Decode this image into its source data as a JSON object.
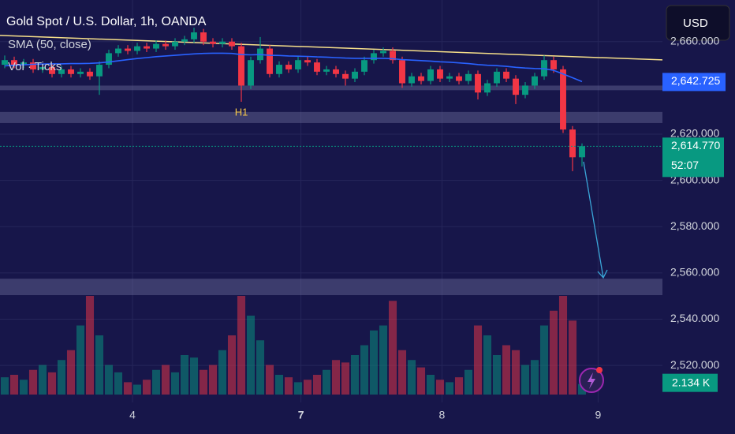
{
  "title": "Gold Spot / U.S. Dollar, 1h, OANDA",
  "indicators": [
    "SMA (50, close)",
    "Vol · Ticks"
  ],
  "currency": "USD",
  "chart_data": {
    "type": "candlestick",
    "ylim": [
      2504,
      2678
    ],
    "yticks": [
      {
        "value": 2660,
        "label": "2,660.000"
      },
      {
        "value": 2620,
        "label": "2,620.000"
      },
      {
        "value": 2600,
        "label": "2,600.000"
      },
      {
        "value": 2580,
        "label": "2,580.000"
      },
      {
        "value": 2560,
        "label": "2,560.000"
      },
      {
        "value": 2540,
        "label": "2,540.000"
      },
      {
        "value": 2520,
        "label": "2,520.000"
      }
    ],
    "xlim": [
      -0.5,
      69.5
    ],
    "xticks": [
      {
        "value": 13.5,
        "label": "4"
      },
      {
        "value": 31.3,
        "label": "7"
      },
      {
        "value": 46.2,
        "label": "8"
      },
      {
        "value": 62.7,
        "label": "9"
      }
    ],
    "up_color": "#089981",
    "down_color": "#f23645",
    "ohlc": [
      [
        2650,
        2654,
        2648.5,
        2652
      ],
      [
        2652,
        2653.5,
        2648.5,
        2650
      ],
      [
        2650,
        2652.5,
        2648.5,
        2651
      ],
      [
        2651,
        2652.5,
        2646.5,
        2648
      ],
      [
        2648,
        2650.5,
        2646.5,
        2649
      ],
      [
        2649,
        2650.5,
        2644.5,
        2646
      ],
      [
        2646,
        2649.5,
        2644.5,
        2648
      ],
      [
        2648,
        2649.5,
        2644.5,
        2646
      ],
      [
        2646,
        2648.5,
        2644.5,
        2647
      ],
      [
        2647,
        2648.5,
        2643.5,
        2645
      ],
      [
        2645,
        2651.5,
        2637,
        2650
      ],
      [
        2650,
        2656.5,
        2648.5,
        2655
      ],
      [
        2655,
        2658.5,
        2653.5,
        2657
      ],
      [
        2657,
        2658.5,
        2654.5,
        2656
      ],
      [
        2656,
        2659.5,
        2654.5,
        2658
      ],
      [
        2658,
        2659.5,
        2655.5,
        2657
      ],
      [
        2657,
        2660.5,
        2655.5,
        2659
      ],
      [
        2659,
        2660.5,
        2656.5,
        2658
      ],
      [
        2658,
        2661.5,
        2656.5,
        2660
      ],
      [
        2660,
        2662.5,
        2658.5,
        2661
      ],
      [
        2661,
        2666,
        2659.5,
        2664
      ],
      [
        2664,
        2665.5,
        2658.5,
        2660
      ],
      [
        2660,
        2661.5,
        2657.5,
        2659
      ],
      [
        2659,
        2661.5,
        2657.5,
        2660
      ],
      [
        2660,
        2661.5,
        2656.5,
        2658
      ],
      [
        2658,
        2659.5,
        2634,
        2641
      ],
      [
        2641,
        2653.5,
        2639.5,
        2652
      ],
      [
        2652,
        2662,
        2650.5,
        2657
      ],
      [
        2657,
        2658.5,
        2644.5,
        2646
      ],
      [
        2646,
        2651.5,
        2644.5,
        2650
      ],
      [
        2650,
        2651.5,
        2646.5,
        2648
      ],
      [
        2648,
        2653.5,
        2646.5,
        2652
      ],
      [
        2652,
        2653.5,
        2649.5,
        2651
      ],
      [
        2651,
        2652.5,
        2645.5,
        2647
      ],
      [
        2647,
        2649.5,
        2645.5,
        2648
      ],
      [
        2648,
        2649.5,
        2644.5,
        2646
      ],
      [
        2646,
        2647.5,
        2641,
        2644
      ],
      [
        2644,
        2648.5,
        2642.5,
        2647
      ],
      [
        2647,
        2653.5,
        2645.5,
        2652
      ],
      [
        2652,
        2656.5,
        2650.5,
        2655
      ],
      [
        2655,
        2657.5,
        2653.5,
        2656
      ],
      [
        2656,
        2657.5,
        2650.5,
        2652
      ],
      [
        2652,
        2653.5,
        2640,
        2642
      ],
      [
        2642,
        2646.5,
        2640.5,
        2645
      ],
      [
        2645,
        2646.5,
        2641.5,
        2643
      ],
      [
        2643,
        2649.5,
        2641.5,
        2648
      ],
      [
        2648,
        2649.5,
        2642.5,
        2644
      ],
      [
        2644,
        2646.5,
        2642.5,
        2645
      ],
      [
        2645,
        2646.5,
        2641.5,
        2643
      ],
      [
        2643,
        2647.5,
        2641.5,
        2646
      ],
      [
        2646,
        2647.5,
        2635,
        2638
      ],
      [
        2638,
        2643.5,
        2636.5,
        2642
      ],
      [
        2642,
        2648.5,
        2640.5,
        2647
      ],
      [
        2647,
        2648.5,
        2642.5,
        2644
      ],
      [
        2644,
        2645.5,
        2633,
        2637
      ],
      [
        2637,
        2642.5,
        2635.5,
        2641
      ],
      [
        2641,
        2646.5,
        2639.5,
        2645
      ],
      [
        2645,
        2654,
        2643.5,
        2652
      ],
      [
        2652,
        2653.5,
        2646.5,
        2648
      ],
      [
        2648,
        2649.5,
        2620.5,
        2622
      ],
      [
        2622,
        2623.5,
        2604,
        2610
      ],
      [
        2610,
        2616,
        2606,
        2614.77
      ]
    ],
    "last_price_label": "2,614.770",
    "countdown": "52:07",
    "sma": {
      "color": "#2962ff",
      "values": [
        2649.5,
        2649.8,
        2650,
        2650.2,
        2650.3,
        2650.4,
        2650.4,
        2650.5,
        2650.5,
        2650.6,
        2650.8,
        2651.2,
        2651.7,
        2652.2,
        2652.7,
        2653.1,
        2653.5,
        2653.8,
        2654.1,
        2654.4,
        2654.7,
        2654.9,
        2655,
        2655,
        2654.9,
        2654.4,
        2654.3,
        2654.4,
        2654.1,
        2654,
        2653.8,
        2653.7,
        2653.6,
        2653.4,
        2653.3,
        2653.1,
        2652.9,
        2652.8,
        2652.8,
        2652.8,
        2652.8,
        2652.6,
        2652.2,
        2652,
        2651.8,
        2651.6,
        2651.3,
        2651.1,
        2650.8,
        2650.5,
        2650.1,
        2649.8,
        2649.6,
        2649.3,
        2648.9,
        2648.6,
        2648.4,
        2648.3,
        2647.6,
        2646,
        2644.4,
        2642.725
      ],
      "value_label": "2,642.725"
    },
    "volume": [
      3500,
      4000,
      3000,
      5000,
      6000,
      4500,
      7000,
      9000,
      14000,
      20000,
      12000,
      6000,
      4500,
      2500,
      2000,
      3000,
      5000,
      6000,
      4500,
      8000,
      7500,
      5000,
      6000,
      9000,
      12000,
      20000,
      16000,
      11000,
      6000,
      4000,
      3500,
      2500,
      3000,
      4000,
      5000,
      7000,
      6500,
      8000,
      10000,
      13000,
      14000,
      19000,
      9000,
      7000,
      5500,
      4000,
      3000,
      2500,
      3500,
      5000,
      14000,
      12000,
      8000,
      10000,
      9000,
      6000,
      7000,
      14000,
      17000,
      20000,
      15000,
      2134
    ],
    "volume_label": "2.134 K",
    "vol_lim": [
      0,
      20000
    ],
    "trendline": [
      2662.7,
      2652.1
    ],
    "zones": [
      [
        2639,
        2641
      ],
      [
        2624.8,
        2629.6
      ],
      [
        2550.4,
        2557.5
      ]
    ],
    "annotation": "H1"
  }
}
